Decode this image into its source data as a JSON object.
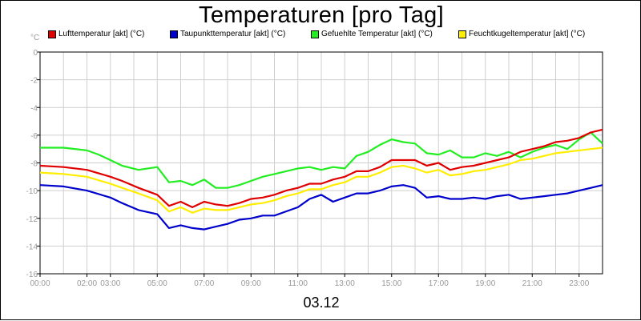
{
  "chart_data": {
    "type": "line",
    "title": "Temperaturen [pro Tag]",
    "date": "03.12",
    "unit": "°C",
    "ylim": [
      -16,
      0
    ],
    "yticks": [
      0,
      -2,
      -4,
      -6,
      -8,
      -10,
      -12,
      -14,
      -16
    ],
    "xlim": [
      0,
      24
    ],
    "xticks": [
      {
        "h": 0,
        "label": "00:00"
      },
      {
        "h": 2.0,
        "label": "02:00"
      },
      {
        "h": 3.0,
        "label": "03:00"
      },
      {
        "h": 5.0,
        "label": "05:00"
      },
      {
        "h": 7.0,
        "label": "07:00"
      },
      {
        "h": 9.0,
        "label": "09:00"
      },
      {
        "h": 11.0,
        "label": "11:00"
      },
      {
        "h": 13.0,
        "label": "13:00"
      },
      {
        "h": 15.0,
        "label": "15:00"
      },
      {
        "h": 17.0,
        "label": "17:00"
      },
      {
        "h": 19.0,
        "label": "19:00"
      },
      {
        "h": 21.0,
        "label": "21:00"
      },
      {
        "h": 23.0,
        "label": "23:00"
      }
    ],
    "grid": true,
    "legend_position": "top",
    "series": [
      {
        "name": "Lufttemperatur [akt] (°C)",
        "color": "#e00000",
        "x": [
          0,
          1,
          2,
          3,
          3.5,
          4.2,
          5,
          5.5,
          6,
          6.5,
          7,
          7.5,
          8,
          8.5,
          9,
          9.5,
          10,
          10.5,
          11,
          11.5,
          12,
          12.5,
          13,
          13.5,
          14,
          14.5,
          15,
          15.5,
          16,
          16.5,
          17,
          17.5,
          18,
          18.5,
          19,
          19.5,
          20,
          20.5,
          21,
          21.5,
          22,
          22.5,
          23,
          23.5,
          24
        ],
        "y": [
          -8.2,
          -8.3,
          -8.5,
          -9.0,
          -9.3,
          -9.8,
          -10.3,
          -11.1,
          -10.8,
          -11.2,
          -10.8,
          -11.0,
          -11.1,
          -10.9,
          -10.6,
          -10.5,
          -10.3,
          -10.0,
          -9.8,
          -9.5,
          -9.5,
          -9.2,
          -9.0,
          -8.6,
          -8.6,
          -8.3,
          -7.8,
          -7.8,
          -7.8,
          -8.2,
          -8.0,
          -8.5,
          -8.3,
          -8.2,
          -8.0,
          -7.8,
          -7.6,
          -7.2,
          -7.0,
          -6.8,
          -6.5,
          -6.4,
          -6.2,
          -5.8,
          -5.6
        ]
      },
      {
        "name": "Taupunkttemperatur [akt] (°C)",
        "color": "#0000cc",
        "x": [
          0,
          1,
          2,
          3,
          3.5,
          4.2,
          5,
          5.5,
          6,
          6.5,
          7,
          7.5,
          8,
          8.5,
          9,
          9.5,
          10,
          10.5,
          11,
          11.5,
          12,
          12.5,
          13,
          13.5,
          14,
          14.5,
          15,
          15.5,
          16,
          16.5,
          17,
          17.5,
          18,
          18.5,
          19,
          19.5,
          20,
          20.5,
          21,
          21.5,
          22,
          22.5,
          23,
          23.5,
          24
        ],
        "y": [
          -9.6,
          -9.7,
          -10.0,
          -10.5,
          -10.9,
          -11.4,
          -11.7,
          -12.7,
          -12.5,
          -12.7,
          -12.8,
          -12.6,
          -12.4,
          -12.1,
          -12.0,
          -11.8,
          -11.8,
          -11.5,
          -11.2,
          -10.6,
          -10.3,
          -10.8,
          -10.5,
          -10.2,
          -10.2,
          -10.0,
          -9.7,
          -9.6,
          -9.8,
          -10.5,
          -10.4,
          -10.6,
          -10.6,
          -10.5,
          -10.6,
          -10.4,
          -10.3,
          -10.6,
          -10.5,
          -10.4,
          -10.3,
          -10.2,
          -10.0,
          -9.8,
          -9.6
        ]
      },
      {
        "name": "Gefuehlte Temperatur [akt] (°C)",
        "color": "#22ee22",
        "x": [
          0,
          1,
          2,
          2.5,
          3,
          3.5,
          4.2,
          5,
          5.5,
          6,
          6.5,
          7,
          7.5,
          8,
          8.5,
          9,
          9.5,
          10,
          10.5,
          11,
          11.5,
          12,
          12.5,
          13,
          13.5,
          14,
          14.5,
          15,
          15.5,
          16,
          16.5,
          17,
          17.5,
          18,
          18.5,
          19,
          19.5,
          20,
          20.5,
          21,
          21.5,
          22,
          22.5,
          23,
          23.5,
          24
        ],
        "y": [
          -6.9,
          -6.9,
          -7.1,
          -7.4,
          -7.8,
          -8.2,
          -8.5,
          -8.3,
          -9.4,
          -9.3,
          -9.6,
          -9.2,
          -9.8,
          -9.8,
          -9.6,
          -9.3,
          -9.0,
          -8.8,
          -8.6,
          -8.4,
          -8.3,
          -8.5,
          -8.3,
          -8.4,
          -7.5,
          -7.2,
          -6.7,
          -6.3,
          -6.5,
          -6.6,
          -7.3,
          -7.4,
          -7.1,
          -7.6,
          -7.6,
          -7.3,
          -7.5,
          -7.2,
          -7.6,
          -7.2,
          -6.9,
          -6.7,
          -7.0,
          -6.3,
          -5.8,
          -6.6
        ]
      },
      {
        "name": "Feuchtkugeltemperatur [akt] (°C)",
        "color": "#ffee00",
        "x": [
          0,
          1,
          2,
          3,
          3.5,
          4.2,
          5,
          5.5,
          6,
          6.5,
          7,
          7.5,
          8,
          8.5,
          9,
          9.5,
          10,
          10.5,
          11,
          11.5,
          12,
          12.5,
          13,
          13.5,
          14,
          14.5,
          15,
          15.5,
          16,
          16.5,
          17,
          17.5,
          18,
          18.5,
          19,
          19.5,
          20,
          20.5,
          21,
          21.5,
          22,
          22.5,
          23,
          23.5,
          24
        ],
        "y": [
          -8.7,
          -8.8,
          -9.0,
          -9.5,
          -9.8,
          -10.2,
          -10.7,
          -11.5,
          -11.2,
          -11.6,
          -11.3,
          -11.4,
          -11.4,
          -11.2,
          -11.0,
          -10.9,
          -10.7,
          -10.4,
          -10.2,
          -9.9,
          -9.9,
          -9.6,
          -9.4,
          -9.0,
          -9.0,
          -8.7,
          -8.3,
          -8.2,
          -8.4,
          -8.7,
          -8.5,
          -8.9,
          -8.8,
          -8.6,
          -8.5,
          -8.3,
          -8.1,
          -7.8,
          -7.7,
          -7.5,
          -7.3,
          -7.2,
          -7.1,
          -7.0,
          -6.9
        ]
      }
    ]
  }
}
